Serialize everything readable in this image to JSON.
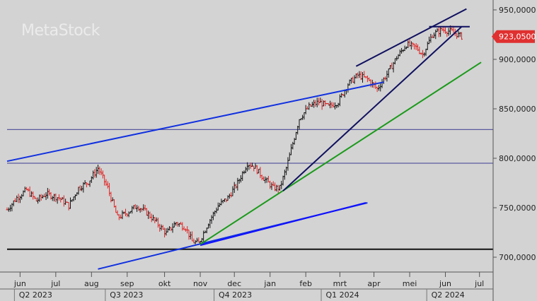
{
  "watermark": "MetaStock",
  "chart_data": {
    "type": "ohlc",
    "y_range": [
      685000,
      960000
    ],
    "y_ticks": [
      "950,0000",
      "900,0000",
      "850,0000",
      "800,0000",
      "750,0000",
      "700,0000"
    ],
    "y_tick_values": [
      950000,
      900000,
      850000,
      800000,
      750000,
      700000
    ],
    "last_price": {
      "label": "923,0500",
      "value": 923050,
      "color": "#e03030"
    },
    "month_labels": [
      "jun",
      "jul",
      "aug",
      "sep",
      "okt",
      "nov",
      "dec",
      "jan",
      "feb",
      "mrt",
      "apr",
      "mei",
      "jun",
      "jul"
    ],
    "month_bars": [
      8,
      30,
      52,
      74,
      97,
      119,
      140,
      162,
      184,
      205,
      226,
      248,
      270,
      291
    ],
    "quarter_labels": [
      "Q2 2023",
      "Q3 2023",
      "Q4 2023",
      "Q1 2024",
      "Q2 2024"
    ],
    "quarter_bars": [
      8,
      64,
      131,
      197,
      262
    ],
    "total_bars": 292,
    "horizontal_lines": [
      {
        "value": 829000,
        "color": "#5a5aa0"
      },
      {
        "value": 795000,
        "color": "#5a5aa0"
      },
      {
        "value": 708000,
        "color": "#111111"
      }
    ],
    "trend_lines": [
      {
        "color": "#1030e0",
        "from": [
          0,
          797000
        ],
        "to": [
          232,
          877000
        ]
      },
      {
        "color": "#1030e0",
        "from": [
          56,
          688000
        ],
        "to": [
          222,
          755000
        ]
      },
      {
        "color": "#1010ff",
        "from": [
          119,
          712000
        ],
        "to": [
          221,
          755000
        ]
      },
      {
        "color": "#1a9a1a",
        "from": [
          119,
          713000
        ],
        "to": [
          292,
          897000
        ]
      },
      {
        "color": "#101060",
        "from": [
          170,
          767000
        ],
        "to": [
          280,
          933000
        ]
      },
      {
        "color": "#101060",
        "from": [
          215,
          893000
        ],
        "to": [
          283,
          951000
        ]
      },
      {
        "color": "#101060",
        "from": [
          260,
          933000
        ],
        "to": [
          285,
          933000
        ]
      }
    ],
    "anchors": [
      [
        0,
        748000
      ],
      [
        6,
        760000
      ],
      [
        12,
        768000
      ],
      [
        18,
        757000
      ],
      [
        24,
        764000
      ],
      [
        32,
        760000
      ],
      [
        38,
        752000
      ],
      [
        44,
        770000
      ],
      [
        50,
        776000
      ],
      [
        56,
        790000
      ],
      [
        62,
        770000
      ],
      [
        68,
        740000
      ],
      [
        74,
        745000
      ],
      [
        80,
        752000
      ],
      [
        86,
        745000
      ],
      [
        92,
        735000
      ],
      [
        98,
        724000
      ],
      [
        104,
        735000
      ],
      [
        110,
        730000
      ],
      [
        114,
        716000
      ],
      [
        118,
        714000
      ],
      [
        124,
        735000
      ],
      [
        130,
        752000
      ],
      [
        136,
        760000
      ],
      [
        142,
        775000
      ],
      [
        148,
        795000
      ],
      [
        152,
        792000
      ],
      [
        158,
        780000
      ],
      [
        164,
        770000
      ],
      [
        168,
        770000
      ],
      [
        172,
        790000
      ],
      [
        176,
        815000
      ],
      [
        180,
        840000
      ],
      [
        186,
        852000
      ],
      [
        192,
        857000
      ],
      [
        198,
        852000
      ],
      [
        204,
        857000
      ],
      [
        210,
        875000
      ],
      [
        216,
        884000
      ],
      [
        222,
        880000
      ],
      [
        228,
        870000
      ],
      [
        234,
        885000
      ],
      [
        240,
        902000
      ],
      [
        246,
        915000
      ],
      [
        252,
        912000
      ],
      [
        256,
        905000
      ],
      [
        262,
        925000
      ],
      [
        268,
        930000
      ],
      [
        274,
        928000
      ],
      [
        280,
        923000
      ]
    ]
  }
}
